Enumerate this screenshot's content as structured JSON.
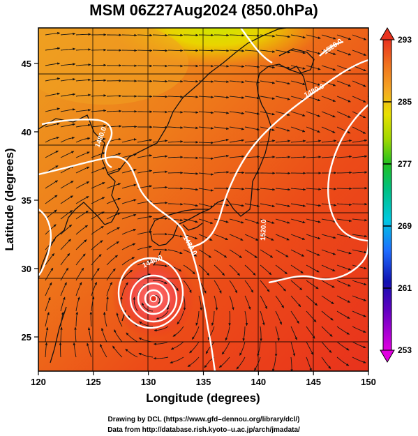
{
  "title": "MSM 06Z27Aug2024 (850.0hPa)",
  "x_axis": {
    "label": "Longitude (degrees)",
    "range": [
      120,
      150
    ],
    "ticks": [
      120,
      125,
      130,
      135,
      140,
      145,
      150
    ],
    "tick_labels": [
      "120",
      "125",
      "130",
      "135",
      "140",
      "145",
      "150"
    ]
  },
  "y_axis": {
    "label": "Latitude  (degrees)",
    "range": [
      22.5,
      47.6
    ],
    "ticks": [
      25,
      30,
      35,
      40,
      45
    ],
    "tick_labels": [
      "25",
      "30",
      "35",
      "40",
      "45"
    ]
  },
  "colorbar": {
    "range": [
      253,
      293
    ],
    "tick_values": [
      261,
      269,
      277,
      285
    ],
    "tick_labels": [
      "293",
      "285",
      "277",
      "269",
      "261",
      "253"
    ],
    "colors": [
      "#e000e0",
      "#1010b0",
      "#1e8cff",
      "#00d6d6",
      "#00c060",
      "#70d000",
      "#e6e600",
      "#f5a623",
      "#f07a1e",
      "#e8321e"
    ]
  },
  "contours": [
    {
      "label": "1440.0",
      "lon": 129.5,
      "lat": 31.0
    },
    {
      "label": "1480.0",
      "lon": 133.3,
      "lat": 32.6
    },
    {
      "label": "1480.0",
      "lon": 144.0,
      "lat": 44.0
    },
    {
      "label": "1480.0",
      "lon": 125.5,
      "lat": 40.5
    },
    {
      "label": "1520.0",
      "lon": 140.8,
      "lat": 33.5
    },
    {
      "label": "1520.0",
      "lon": 146.4,
      "lat": 46.4
    }
  ],
  "credits": {
    "line1": "Drawing by DCL (https://www.gfd–dennou.org/library/dcl/)",
    "line2": "Data from http://database.rish.kyoto–u.ac.jp/arch/jmadata/"
  }
}
